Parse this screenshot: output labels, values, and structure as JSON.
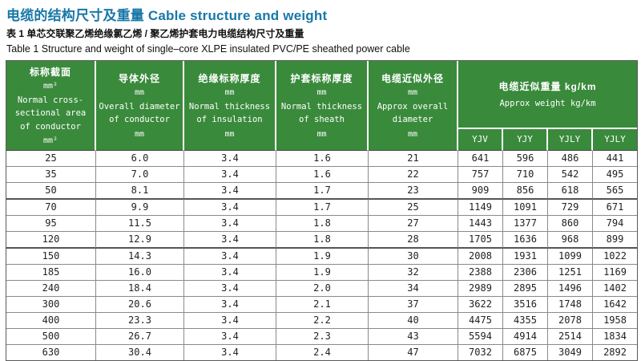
{
  "page": {
    "title": "电缆的结构尺寸及重量 Cable structure and weight",
    "caption_zh": "表 1 单芯交联聚乙烯绝缘氯乙烯 / 聚乙烯护套电力电缆结构尺寸及重量",
    "caption_en": "Table 1 Structure and weight of single–core XLPE insulated PVC/PE sheathed power cable"
  },
  "colors": {
    "title_blue": "#1878a8",
    "header_green": "#3a8a3c",
    "header_text": "#ffffff",
    "grid_gray": "#8a8a8a",
    "body_text": "#222222"
  },
  "table": {
    "headers": [
      {
        "zh": "标称截面",
        "unit": "mm²",
        "en": "Normal cross-sectional area of conductor",
        "unit2": "mm²"
      },
      {
        "zh": "导体外径",
        "unit": "mm",
        "en": "Overall diameter of conductor",
        "unit2": "mm"
      },
      {
        "zh": "绝缘标称厚度",
        "unit": "mm",
        "en": "Normal thickness of insulation",
        "unit2": "mm"
      },
      {
        "zh": "护套标称厚度",
        "unit": "mm",
        "en": "Normal thickness of sheath",
        "unit2": "mm"
      },
      {
        "zh": "电缆近似外径",
        "unit": "mm",
        "en": "Approx overall diameter",
        "unit2": "mm"
      }
    ],
    "weight_group": {
      "zh": "电缆近似重量 kg/km",
      "en": "Approx weight kg/km",
      "subcolumns": [
        "YJV",
        "YJY",
        "YJLY",
        "YJLY"
      ]
    },
    "rows": [
      [
        "25",
        "6.0",
        "3.4",
        "1.6",
        "21",
        "641",
        "596",
        "486",
        "441"
      ],
      [
        "35",
        "7.0",
        "3.4",
        "1.6",
        "22",
        "757",
        "710",
        "542",
        "495"
      ],
      [
        "50",
        "8.1",
        "3.4",
        "1.7",
        "23",
        "909",
        "856",
        "618",
        "565"
      ],
      [
        "70",
        "9.9",
        "3.4",
        "1.7",
        "25",
        "1149",
        "1091",
        "729",
        "671"
      ],
      [
        "95",
        "11.5",
        "3.4",
        "1.8",
        "27",
        "1443",
        "1377",
        "860",
        "794"
      ],
      [
        "120",
        "12.9",
        "3.4",
        "1.8",
        "28",
        "1705",
        "1636",
        "968",
        "899"
      ],
      [
        "150",
        "14.3",
        "3.4",
        "1.9",
        "30",
        "2008",
        "1931",
        "1099",
        "1022"
      ],
      [
        "185",
        "16.0",
        "3.4",
        "1.9",
        "32",
        "2388",
        "2306",
        "1251",
        "1169"
      ],
      [
        "240",
        "18.4",
        "3.4",
        "2.0",
        "34",
        "2989",
        "2895",
        "1496",
        "1402"
      ],
      [
        "300",
        "20.6",
        "3.4",
        "2.1",
        "37",
        "3622",
        "3516",
        "1748",
        "1642"
      ],
      [
        "400",
        "23.3",
        "3.4",
        "2.2",
        "40",
        "4475",
        "4355",
        "2078",
        "1958"
      ],
      [
        "500",
        "26.7",
        "3.4",
        "2.3",
        "43",
        "5594",
        "4914",
        "2514",
        "1834"
      ],
      [
        "630",
        "30.4",
        "3.4",
        "2.4",
        "47",
        "7032",
        "6875",
        "3049",
        "2892"
      ]
    ]
  }
}
